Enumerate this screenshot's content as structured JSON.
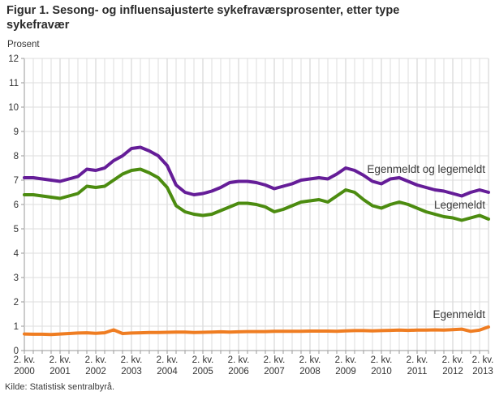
{
  "header": {
    "title": "Figur 1. Sesong- og influensajusterte sykefraværsprosenter, etter type\nsykefravær"
  },
  "y_axis_title": "Prosent",
  "source": "Kilde: Statistisk sentralbyrå.",
  "colors": {
    "total_line": "#651d98",
    "legemeldt_line": "#4c8c10",
    "egenmeldt_line": "#ef7d22",
    "grid": "#dedede",
    "grid_year": "#cfcfcf",
    "axis": "#9a9a9a",
    "text": "#333333"
  },
  "chart_data": {
    "type": "line",
    "title": "Figur 1. Sesong- og influensajusterte sykefraværsprosenter, etter type sykefravær",
    "ylabel": "Prosent",
    "ylim": [
      0,
      12
    ],
    "y_ticks": [
      0,
      1,
      2,
      3,
      4,
      5,
      6,
      7,
      8,
      9,
      10,
      11,
      12
    ],
    "grid": true,
    "legend": "inline-labels",
    "x_axis": {
      "tick_label_top": "2. kv.",
      "years": [
        "2000",
        "2001",
        "2002",
        "2003",
        "2004",
        "2005",
        "2006",
        "2007",
        "2008",
        "2009",
        "2010",
        "2011",
        "2012",
        "2013"
      ],
      "points_per_year": 4,
      "start": "2. kv. 2000",
      "end": "2. kv. 2013"
    },
    "series": [
      {
        "name": "Egenmeldt og legemeldt",
        "color": "#651d98",
        "values": [
          7.1,
          7.1,
          7.05,
          7.0,
          6.95,
          7.05,
          7.15,
          7.45,
          7.4,
          7.5,
          7.8,
          8.0,
          8.3,
          8.35,
          8.2,
          8.0,
          7.6,
          6.8,
          6.5,
          6.4,
          6.45,
          6.55,
          6.7,
          6.9,
          6.95,
          6.95,
          6.9,
          6.8,
          6.65,
          6.75,
          6.85,
          7.0,
          7.05,
          7.1,
          7.05,
          7.25,
          7.5,
          7.4,
          7.2,
          6.95,
          6.85,
          7.05,
          7.1,
          6.95,
          6.8,
          6.7,
          6.6,
          6.55,
          6.45,
          6.35,
          6.5,
          6.6,
          6.5
        ]
      },
      {
        "name": "Legemeldt",
        "color": "#4c8c10",
        "values": [
          6.4,
          6.4,
          6.35,
          6.3,
          6.25,
          6.35,
          6.45,
          6.75,
          6.7,
          6.75,
          7.0,
          7.25,
          7.4,
          7.45,
          7.3,
          7.1,
          6.7,
          5.95,
          5.7,
          5.6,
          5.55,
          5.6,
          5.75,
          5.9,
          6.05,
          6.05,
          6.0,
          5.9,
          5.7,
          5.8,
          5.95,
          6.1,
          6.15,
          6.2,
          6.1,
          6.35,
          6.6,
          6.5,
          6.2,
          5.95,
          5.85,
          6.0,
          6.1,
          6.0,
          5.85,
          5.7,
          5.6,
          5.5,
          5.45,
          5.35,
          5.45,
          5.55,
          5.4
        ]
      },
      {
        "name": "Egenmeldt",
        "color": "#ef7d22",
        "values": [
          0.68,
          0.67,
          0.67,
          0.66,
          0.68,
          0.7,
          0.72,
          0.73,
          0.71,
          0.73,
          0.85,
          0.7,
          0.72,
          0.73,
          0.74,
          0.74,
          0.75,
          0.76,
          0.76,
          0.74,
          0.75,
          0.76,
          0.77,
          0.76,
          0.77,
          0.78,
          0.78,
          0.78,
          0.79,
          0.79,
          0.79,
          0.79,
          0.8,
          0.8,
          0.8,
          0.79,
          0.81,
          0.82,
          0.82,
          0.81,
          0.82,
          0.83,
          0.84,
          0.83,
          0.84,
          0.84,
          0.85,
          0.84,
          0.86,
          0.88,
          0.79,
          0.84,
          0.97
        ]
      }
    ]
  }
}
